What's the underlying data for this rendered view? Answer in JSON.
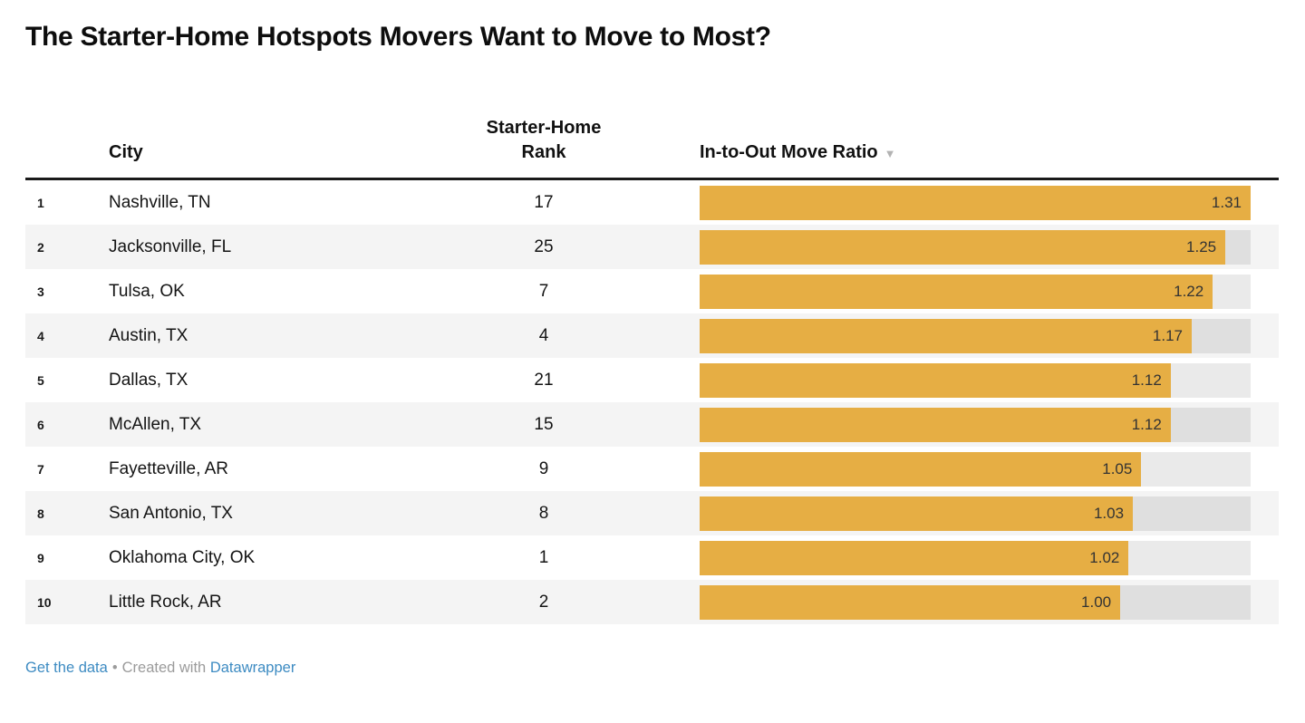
{
  "title": "The Starter-Home Hotspots Movers Want to Move to Most?",
  "table": {
    "columns": {
      "city": "City",
      "rank_line1": "Starter-Home",
      "rank_line2": "Rank",
      "ratio": "In-to-Out Move Ratio",
      "sort_icon": "▼"
    },
    "rows": [
      {
        "index": "1",
        "city": "Nashville, TN",
        "rank": "17",
        "ratio": 1.31,
        "ratio_label": "1.31"
      },
      {
        "index": "2",
        "city": "Jacksonville, FL",
        "rank": "25",
        "ratio": 1.25,
        "ratio_label": "1.25"
      },
      {
        "index": "3",
        "city": "Tulsa, OK",
        "rank": "7",
        "ratio": 1.22,
        "ratio_label": "1.22"
      },
      {
        "index": "4",
        "city": "Austin, TX",
        "rank": "4",
        "ratio": 1.17,
        "ratio_label": "1.17"
      },
      {
        "index": "5",
        "city": "Dallas, TX",
        "rank": "21",
        "ratio": 1.12,
        "ratio_label": "1.12"
      },
      {
        "index": "6",
        "city": "McAllen, TX",
        "rank": "15",
        "ratio": 1.12,
        "ratio_label": "1.12"
      },
      {
        "index": "7",
        "city": "Fayetteville, AR",
        "rank": "9",
        "ratio": 1.05,
        "ratio_label": "1.05"
      },
      {
        "index": "8",
        "city": "San Antonio, TX",
        "rank": "8",
        "ratio": 1.03,
        "ratio_label": "1.03"
      },
      {
        "index": "9",
        "city": "Oklahoma City, OK",
        "rank": "1",
        "ratio": 1.02,
        "ratio_label": "1.02"
      },
      {
        "index": "10",
        "city": "Little Rock, AR",
        "rank": "2",
        "ratio": 1.0,
        "ratio_label": "1.00"
      }
    ]
  },
  "footer": {
    "get_data": "Get the data",
    "separator": "•",
    "created": "Created with",
    "brand": "Datawrapper"
  },
  "colors": {
    "bar": "#e6ae44",
    "track": "#e5e5e5",
    "zebra": "#f4f4f4",
    "link_blue": "#3d8bc2",
    "footer_gray": "#9b9b9b",
    "header_rule": "#1a1a1a"
  },
  "chart_data": {
    "type": "bar",
    "orientation": "horizontal",
    "title": "The Starter-Home Hotspots Movers Want to Move to Most?",
    "categories": [
      "Nashville, TN",
      "Jacksonville, FL",
      "Tulsa, OK",
      "Austin, TX",
      "Dallas, TX",
      "McAllen, TX",
      "Fayetteville, AR",
      "San Antonio, TX",
      "Oklahoma City, OK",
      "Little Rock, AR"
    ],
    "series": [
      {
        "name": "Starter-Home Rank",
        "values": [
          17,
          25,
          7,
          4,
          21,
          15,
          9,
          8,
          1,
          2
        ]
      },
      {
        "name": "In-to-Out Move Ratio",
        "values": [
          1.31,
          1.25,
          1.22,
          1.17,
          1.12,
          1.12,
          1.05,
          1.03,
          1.02,
          1.0
        ]
      }
    ],
    "xlim": [
      0,
      1.31
    ],
    "sorted_by": "In-to-Out Move Ratio",
    "sort_order": "descending",
    "data_labels": "inside-bar-right",
    "legend_position": "none",
    "grid": false,
    "bar_color": "#e6ae44"
  }
}
